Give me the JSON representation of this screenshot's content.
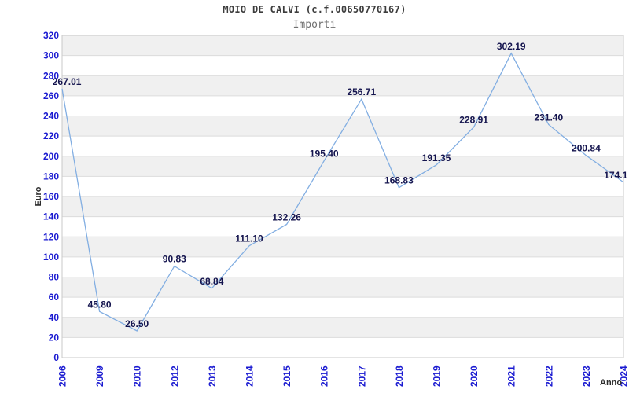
{
  "chart_data": {
    "type": "line",
    "title": "MOIO DE CALVI (c.f.00650770167)",
    "subtitle": "Importi",
    "xlabel": "Anno",
    "ylabel": "Euro",
    "categories": [
      "2006",
      "2009",
      "2010",
      "2012",
      "2013",
      "2014",
      "2015",
      "2016",
      "2017",
      "2018",
      "2019",
      "2020",
      "2021",
      "2022",
      "2023",
      "2024"
    ],
    "values": [
      267.01,
      45.8,
      26.5,
      90.83,
      68.84,
      111.1,
      132.26,
      195.4,
      256.71,
      168.83,
      191.35,
      228.91,
      302.19,
      231.4,
      200.84,
      174.1
    ],
    "point_labels": [
      "267.01",
      "45.80",
      "26.50",
      "90.83",
      "68.84",
      "111.10",
      "132.26",
      "195.40",
      "256.71",
      "168.83",
      "191.35",
      "228.91",
      "302.19",
      "231.40",
      "200.84",
      "174.1"
    ],
    "ylim": [
      0,
      320
    ],
    "ytick_step": 20,
    "grid": "alternating-horizontal-bands",
    "legend": "none",
    "colors": {
      "line": "#82aee2",
      "tick_label": "#1a1ad1",
      "point_label": "#14144e",
      "band_fill": "#f0f0f0",
      "grid_line": "#dcdcdc",
      "plot_border": "#c9c9c9",
      "title": "#3c3c3c",
      "subtitle": "#707070",
      "axis_title": "#2b2b2b",
      "background": "#ffffff"
    }
  }
}
